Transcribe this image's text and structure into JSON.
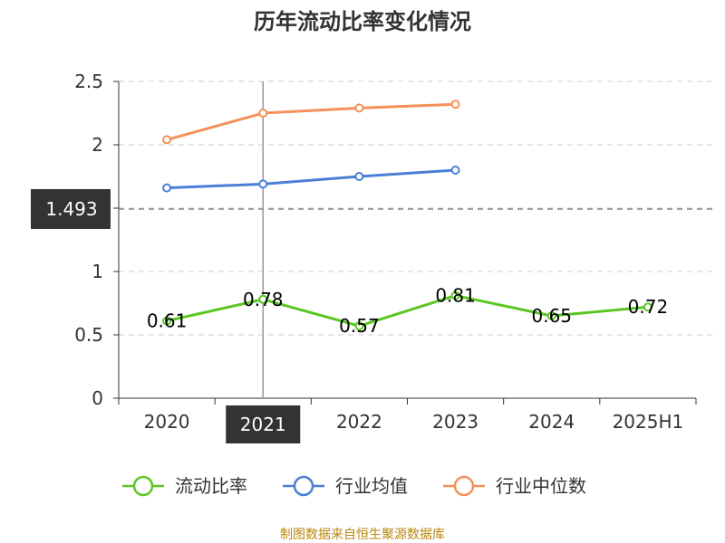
{
  "chart_data": {
    "type": "line",
    "title": "历年流动比率变化情况",
    "categories": [
      "2020",
      "2021",
      "2022",
      "2023",
      "2024",
      "2025H1"
    ],
    "y_ticks": [
      "0",
      "0.5",
      "1",
      "1.5",
      "2",
      "2.5"
    ],
    "ylim": [
      0,
      2.5
    ],
    "grid": "horizontal-dashed",
    "legend_position": "bottom",
    "series": [
      {
        "name": "流动比率",
        "color": "#5cc623",
        "values": [
          0.61,
          0.78,
          0.57,
          0.81,
          0.65,
          0.72
        ],
        "labels": [
          "0.61",
          "0.78",
          "0.57",
          "0.81",
          "0.65",
          "0.72"
        ]
      },
      {
        "name": "行业均值",
        "color": "#4a7fd6",
        "values": [
          1.66,
          1.69,
          1.75,
          1.8,
          null,
          null
        ]
      },
      {
        "name": "行业中位数",
        "color": "#f5915a",
        "values": [
          2.04,
          2.25,
          2.29,
          2.32,
          null,
          null
        ]
      }
    ],
    "axis_pointer": {
      "x_label": "2021",
      "y_label": "1.493",
      "y_value": 1.493,
      "category_index": 1
    }
  },
  "source": "制图数据来自恒生聚源数据库"
}
